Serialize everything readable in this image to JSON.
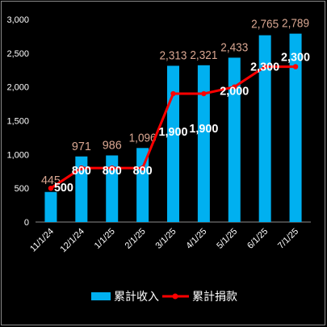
{
  "chart_data": {
    "type": "bar+line",
    "categories": [
      "11/1/24",
      "12/1/24",
      "1/1/25",
      "2/1/25",
      "3/1/25",
      "4/1/25",
      "5/1/25",
      "6/1/25",
      "7/1/25"
    ],
    "series": [
      {
        "name": "累計收入",
        "type": "bar",
        "color": "#00b0f0",
        "values": [
          445,
          971,
          986,
          1096,
          2313,
          2321,
          2433,
          2765,
          2789
        ],
        "labels": [
          "445",
          "971",
          "986",
          "1,096",
          "2,313",
          "2,321",
          "2,433",
          "2,765",
          "2,789"
        ]
      },
      {
        "name": "累計捐款",
        "type": "line",
        "color": "#ff0000",
        "values": [
          500,
          800,
          800,
          800,
          1900,
          1900,
          2000,
          2300,
          2300
        ],
        "labels": [
          "500",
          "800",
          "800",
          "800",
          "1,900",
          "1,900",
          "2,000",
          "2,300",
          "2,300"
        ]
      }
    ],
    "y_ticks": [
      "0",
      "500",
      "1,000",
      "1,500",
      "2,000",
      "2,500",
      "3,000"
    ],
    "ylim": [
      0,
      3000
    ],
    "grid": false,
    "legend": "bottom",
    "title": "",
    "xlabel": "",
    "ylabel": ""
  }
}
